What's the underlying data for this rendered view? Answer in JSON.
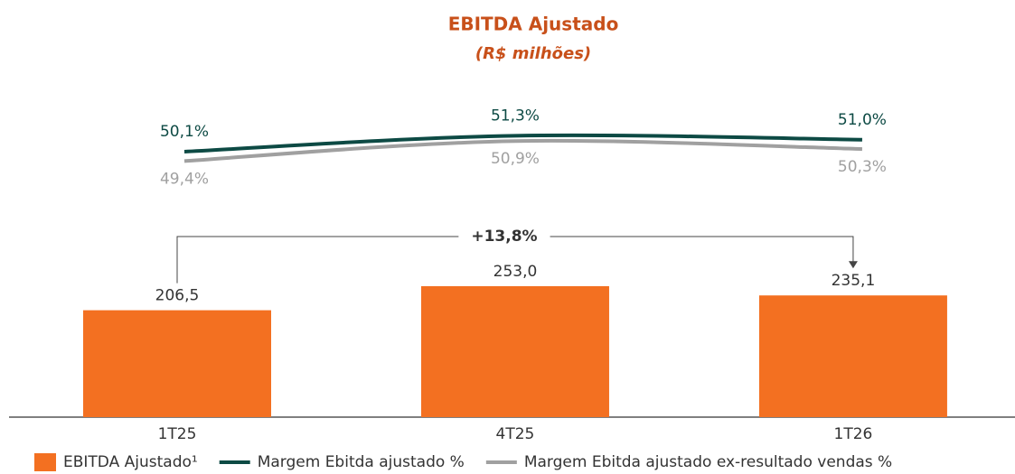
{
  "chart_data": {
    "type": "bar",
    "title": "EBITDA Ajustado",
    "subtitle": "(R$ milhões)",
    "categories": [
      "1T25",
      "4T25",
      "1T26"
    ],
    "series": [
      {
        "name": "EBITDA Ajustado¹",
        "type": "bar",
        "color": "#f37021",
        "values": [
          206.5,
          253.0,
          235.1
        ],
        "value_labels": [
          "206,5",
          "253,0",
          "235,1"
        ]
      },
      {
        "name": "Margem Ebitda ajustado %",
        "type": "line",
        "axis": "y2",
        "color": "#0d4a44",
        "values": [
          50.1,
          51.3,
          51.0
        ],
        "value_labels": [
          "50,1%",
          "51,3%",
          "51,0%"
        ]
      },
      {
        "name": "Margem Ebitda ajustado ex-resultado vendas %",
        "type": "line",
        "axis": "y2",
        "color": "#a0a0a0",
        "values": [
          49.4,
          50.9,
          50.3
        ],
        "value_labels": [
          "49,4%",
          "50,9%",
          "50,3%"
        ]
      }
    ],
    "annotation": "+13,8%",
    "ylim": [
      0,
      300
    ],
    "y2lim": [
      48,
      52
    ],
    "grid": false
  }
}
